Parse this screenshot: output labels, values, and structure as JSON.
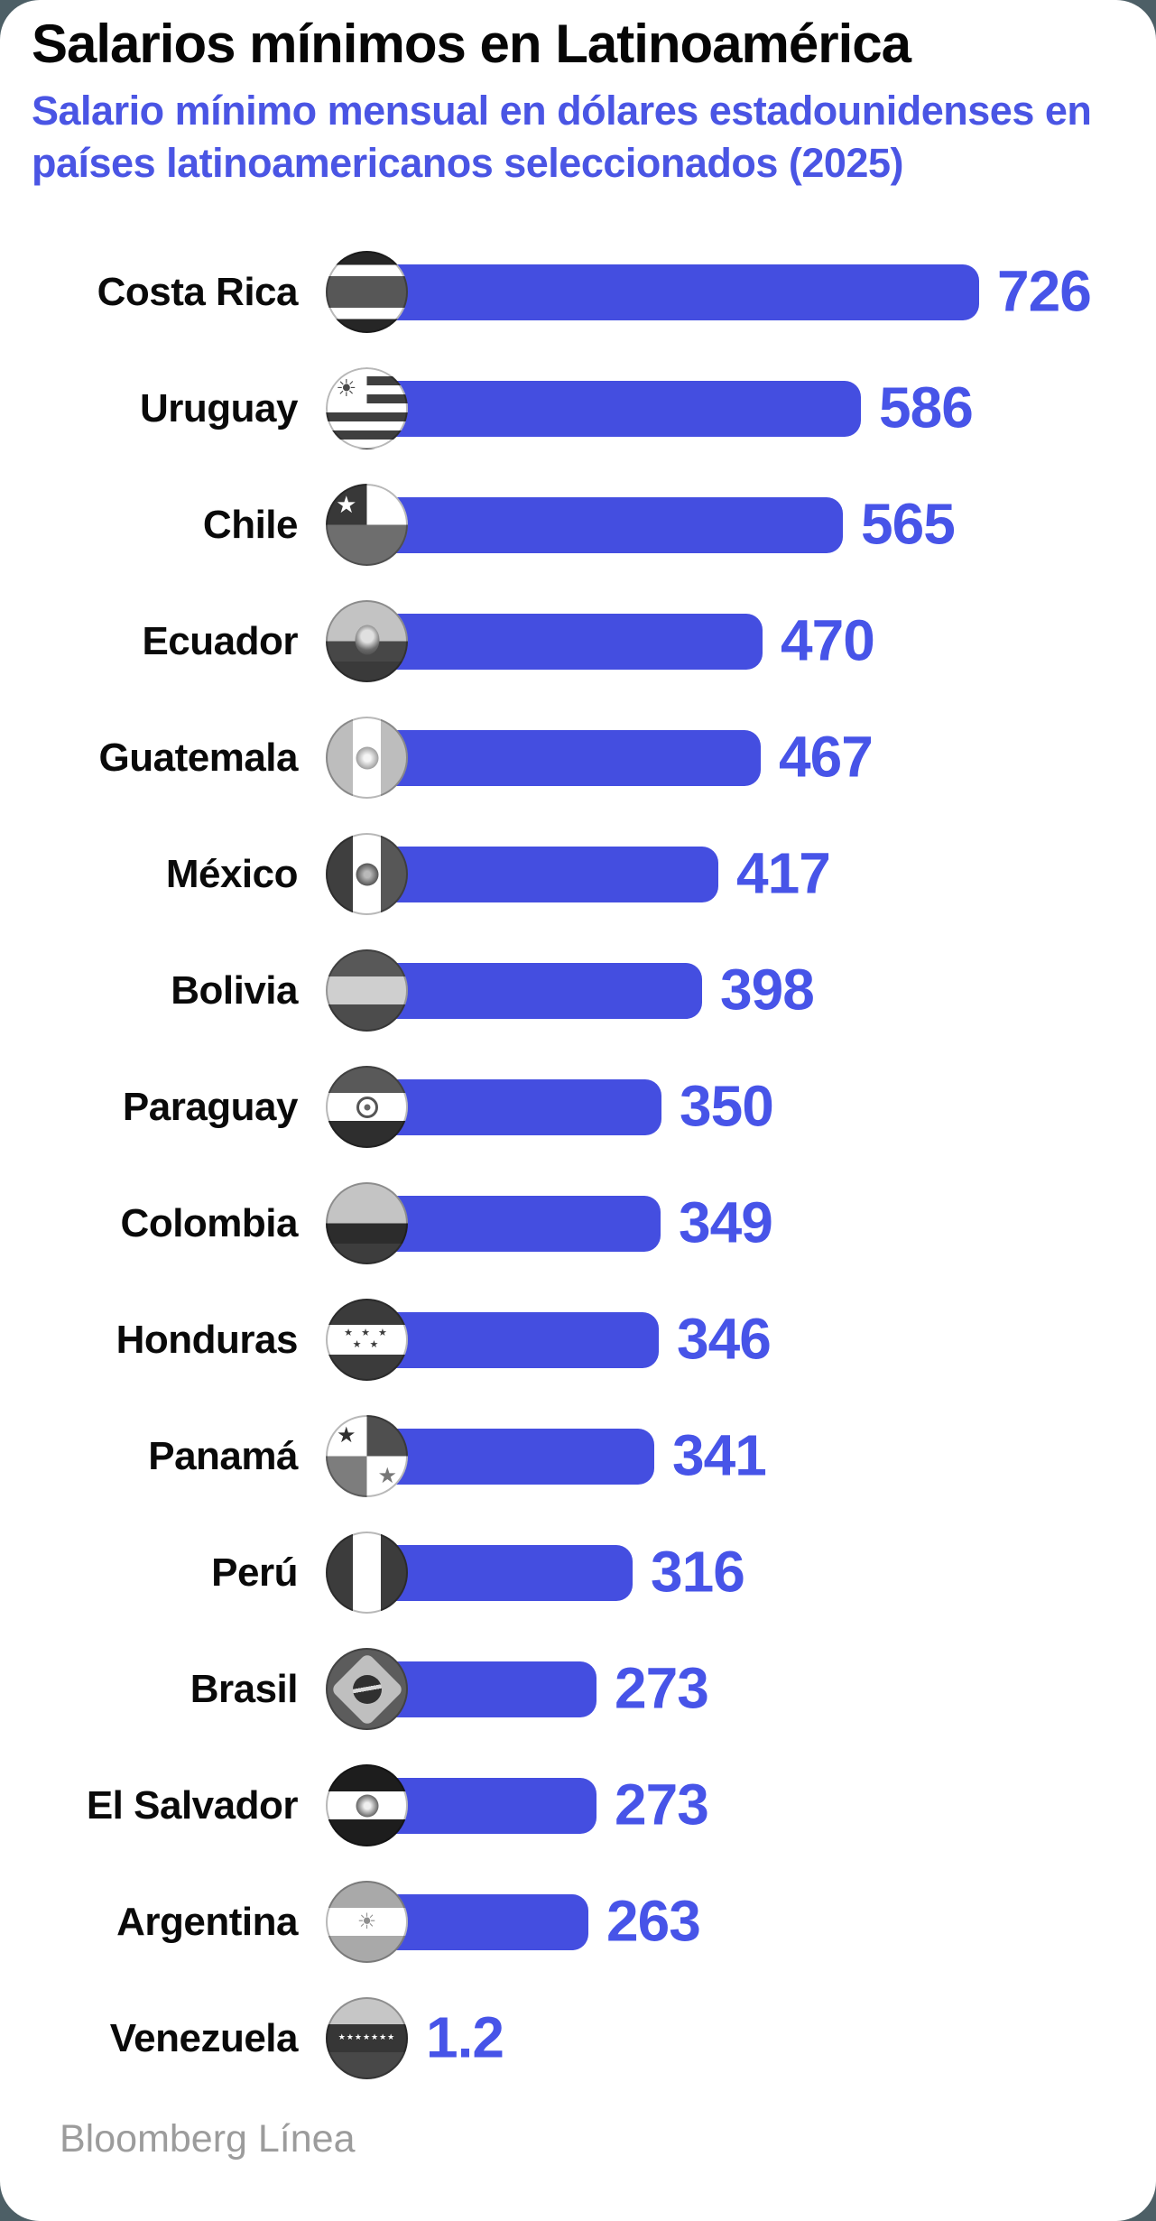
{
  "header": {
    "title": "Salarios mínimos en Latinoamérica",
    "subtitle_line1": "Salario mínimo mensual en dólares estadounidenses en",
    "subtitle_line2": "países latinoamericanos seleccionados (2025)"
  },
  "footer": {
    "source": "Bloomberg Línea"
  },
  "colors": {
    "bar_blue": "#444EE0",
    "value_text_blue": "#4754E8",
    "subtitle_blue": "#4A55E4",
    "label_black": "#0A0A0A",
    "source_gray": "#9C9C9C",
    "backdrop_slate": "#4D5F66",
    "card_white": "#FFFFFF"
  },
  "chart_data": {
    "type": "bar",
    "orientation": "horizontal",
    "title": "Salarios mínimos en Latinoamérica",
    "subtitle": "Salario mínimo mensual en dólares estadounidenses en países latinoamericanos seleccionados (2025)",
    "year": "2025",
    "xlim": [
      0,
      726
    ],
    "grid": false,
    "legend": false,
    "source": "Bloomberg Línea",
    "categories": [
      "Costa Rica",
      "Uruguay",
      "Chile",
      "Ecuador",
      "Guatemala",
      "México",
      "Bolivia",
      "Paraguay",
      "Colombia",
      "Honduras",
      "Panamá",
      "Perú",
      "Brasil",
      "El Salvador",
      "Argentina",
      "Venezuela"
    ],
    "values": [
      726,
      586,
      565,
      470,
      467,
      417,
      398,
      350,
      349,
      346,
      341,
      316,
      273,
      273,
      263,
      1.2
    ],
    "value_labels": [
      "726",
      "586",
      "565",
      "470",
      "467",
      "417",
      "398",
      "350",
      "349",
      "346",
      "341",
      "316",
      "273",
      "273",
      "263",
      "1.2"
    ],
    "flag_keys": [
      "costa-rica",
      "uruguay",
      "chile",
      "ecuador",
      "guatemala",
      "mexico",
      "bolivia",
      "paraguay",
      "colombia",
      "honduras",
      "panama",
      "peru",
      "brasil",
      "el-salvador",
      "argentina",
      "venezuela"
    ]
  }
}
